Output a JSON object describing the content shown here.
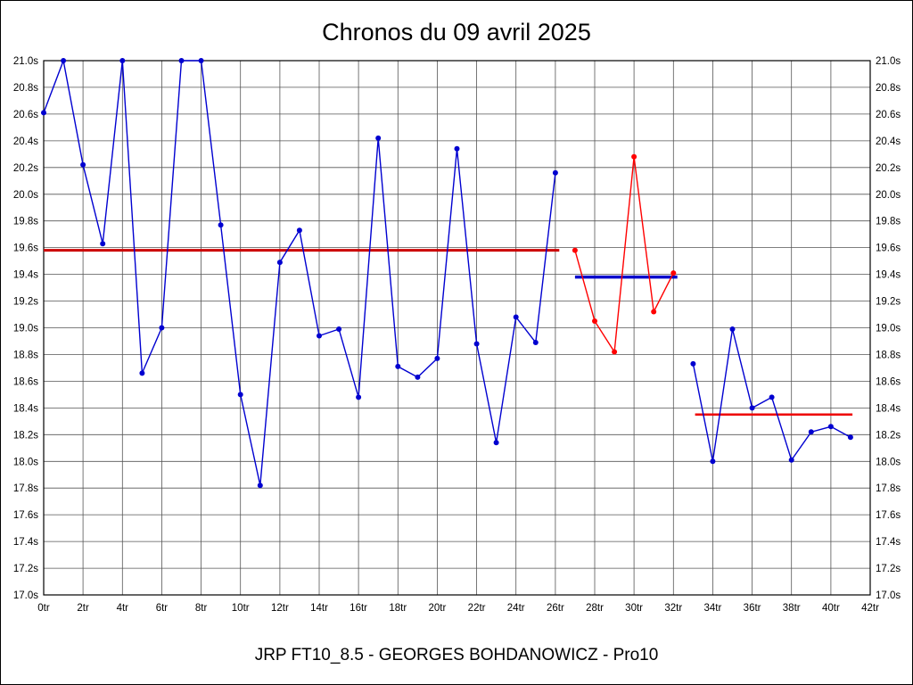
{
  "title": "Chronos du 09 avril 2025",
  "footer": "JRP FT10_8.5 - GEORGES BOHDANOWICZ - Pro10",
  "chart_data": {
    "type": "line",
    "title": "Chronos du 09 avril 2025",
    "xlabel": "",
    "ylabel": "",
    "xlim": [
      0,
      42
    ],
    "ylim": [
      17.0,
      21.0
    ],
    "grid": true,
    "legend": "none",
    "x_tick_values": [
      0,
      2,
      4,
      6,
      8,
      10,
      12,
      14,
      16,
      18,
      20,
      22,
      24,
      26,
      28,
      30,
      32,
      34,
      36,
      38,
      40,
      42
    ],
    "x_tick_labels": [
      "0tr",
      "2tr",
      "4tr",
      "6tr",
      "8tr",
      "10tr",
      "12tr",
      "14tr",
      "16tr",
      "18tr",
      "20tr",
      "22tr",
      "24tr",
      "26tr",
      "28tr",
      "30tr",
      "32tr",
      "34tr",
      "36tr",
      "38tr",
      "40tr",
      "42tr"
    ],
    "y_tick_values": [
      17.0,
      17.2,
      17.4,
      17.6,
      17.8,
      18.0,
      18.2,
      18.4,
      18.6,
      18.8,
      19.0,
      19.2,
      19.4,
      19.6,
      19.8,
      20.0,
      20.2,
      20.4,
      20.6,
      20.8,
      21.0
    ],
    "y_tick_labels": [
      "17.0s",
      "17.2s",
      "17.4s",
      "17.6s",
      "17.8s",
      "18.0s",
      "18.2s",
      "18.4s",
      "18.6s",
      "18.8s",
      "19.0s",
      "19.2s",
      "19.4s",
      "19.6s",
      "19.8s",
      "20.0s",
      "20.2s",
      "20.4s",
      "20.6s",
      "20.8s",
      "21.0s"
    ],
    "series": [
      {
        "name": "laps-segment-1-blue",
        "color": "#0000d0",
        "x": [
          0,
          1,
          2,
          3,
          4,
          5,
          6,
          7,
          8,
          9,
          10,
          11,
          12,
          13,
          14,
          15,
          16,
          17,
          18,
          19,
          20,
          21,
          22,
          23,
          24,
          25,
          26
        ],
        "values": [
          20.61,
          21.0,
          20.22,
          19.63,
          21.0,
          18.66,
          19.0,
          21.0,
          21.0,
          19.77,
          18.5,
          17.82,
          19.49,
          19.73,
          18.94,
          18.99,
          18.48,
          20.42,
          18.71,
          18.63,
          18.77,
          20.34,
          18.88,
          18.14,
          19.08,
          18.89,
          20.16
        ]
      },
      {
        "name": "laps-segment-2-red",
        "color": "#ff0000",
        "x": [
          27,
          28,
          29,
          30,
          31,
          32
        ],
        "values": [
          19.58,
          19.05,
          18.82,
          20.28,
          19.12,
          19.41
        ]
      },
      {
        "name": "laps-segment-3-blue",
        "color": "#0000d0",
        "x": [
          33,
          34,
          35,
          36,
          37,
          38,
          39,
          40,
          41
        ],
        "values": [
          18.73,
          18.0,
          18.99,
          18.4,
          18.48,
          18.01,
          18.22,
          18.26,
          18.18
        ]
      }
    ],
    "reference_lines": [
      {
        "name": "segment-1-average",
        "color": "#cc0000",
        "y": 19.58,
        "x_start": 0,
        "x_end": 26.2,
        "width": 3
      },
      {
        "name": "segment-2-average",
        "color": "#0000cc",
        "y": 19.38,
        "x_start": 27,
        "x_end": 32.2,
        "width": 3.5
      },
      {
        "name": "segment-3-average",
        "color": "#ee0000",
        "y": 18.35,
        "x_start": 33.1,
        "x_end": 41.1,
        "width": 2.5
      }
    ]
  }
}
